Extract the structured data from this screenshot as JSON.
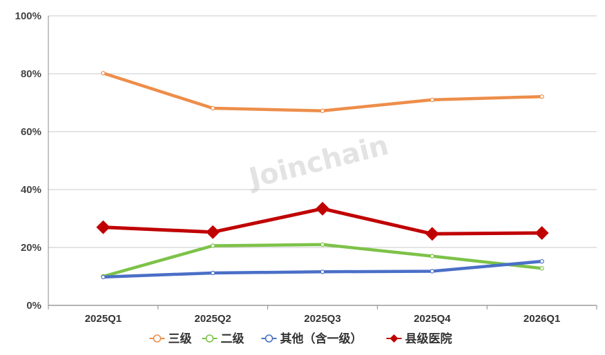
{
  "watermark": "Joinchain",
  "chart_data": {
    "type": "line",
    "categories": [
      "2025Q1",
      "2025Q2",
      "2025Q3",
      "2025Q4",
      "2026Q1"
    ],
    "y_ticks": [
      "0%",
      "20%",
      "40%",
      "60%",
      "80%",
      "100%"
    ],
    "ylim": [
      0,
      100
    ],
    "y_unit": "%",
    "grid": "horizontal",
    "legend_position": "bottom",
    "series": [
      {
        "name": "三级",
        "values": [
          80.2,
          68.1,
          67.2,
          71.0,
          72.1
        ],
        "color": "#ED8E4A",
        "marker": "hollow-circle"
      },
      {
        "name": "二级",
        "values": [
          10.0,
          20.6,
          21.0,
          17.0,
          12.8
        ],
        "color": "#7DC248",
        "marker": "hollow-circle"
      },
      {
        "name": "其他（含一级）",
        "values": [
          9.8,
          11.2,
          11.6,
          11.8,
          15.2
        ],
        "color": "#4A6FC7",
        "marker": "hollow-circle"
      },
      {
        "name": "县级医院",
        "values": [
          27.0,
          25.3,
          33.4,
          24.7,
          25.0
        ],
        "color": "#C00000",
        "marker": "filled-diamond"
      }
    ]
  }
}
